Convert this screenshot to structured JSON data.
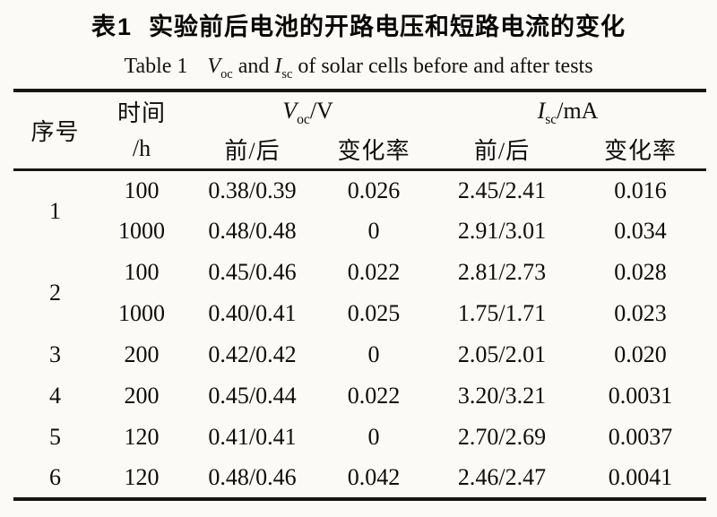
{
  "caption_zh": {
    "label": "表1",
    "text": "实验前后电池的开路电压和短路电流的变化"
  },
  "caption_en": {
    "prefix": "Table 1",
    "voc_sym": "V",
    "voc_sub": "oc",
    "mid": "and",
    "isc_sym": "I",
    "isc_sub": "sc",
    "rest": "of solar cells before and after tests"
  },
  "table": {
    "headers": {
      "no": "序号",
      "time": "时间",
      "time_unit": "/h",
      "voc_sym": "V",
      "voc_sub": "oc",
      "voc_unit": "/V",
      "isc_sym": "I",
      "isc_sub": "sc",
      "isc_unit": "/mA",
      "before_after": "前/后",
      "change_rate": "变化率"
    },
    "rows": [
      {
        "no": "1",
        "time": "100",
        "voc": "0.38/0.39",
        "voc_rate": "0.026",
        "isc": "2.45/2.41",
        "isc_rate": "0.016"
      },
      {
        "time": "1000",
        "voc": "0.48/0.48",
        "voc_rate": "0",
        "isc": "2.91/3.01",
        "isc_rate": "0.034"
      },
      {
        "no": "2",
        "time": "100",
        "voc": "0.45/0.46",
        "voc_rate": "0.022",
        "isc": "2.81/2.73",
        "isc_rate": "0.028"
      },
      {
        "time": "1000",
        "voc": "0.40/0.41",
        "voc_rate": "0.025",
        "isc": "1.75/1.71",
        "isc_rate": "0.023"
      },
      {
        "no": "3",
        "time": "200",
        "voc": "0.42/0.42",
        "voc_rate": "0",
        "isc": "2.05/2.01",
        "isc_rate": "0.020"
      },
      {
        "no": "4",
        "time": "200",
        "voc": "0.45/0.44",
        "voc_rate": "0.022",
        "isc": "3.20/3.21",
        "isc_rate": "0.0031"
      },
      {
        "no": "5",
        "time": "120",
        "voc": "0.41/0.41",
        "voc_rate": "0",
        "isc": "2.70/2.69",
        "isc_rate": "0.0037"
      },
      {
        "no": "6",
        "time": "120",
        "voc": "0.48/0.46",
        "voc_rate": "0.042",
        "isc": "2.46/2.47",
        "isc_rate": "0.0041"
      }
    ]
  }
}
